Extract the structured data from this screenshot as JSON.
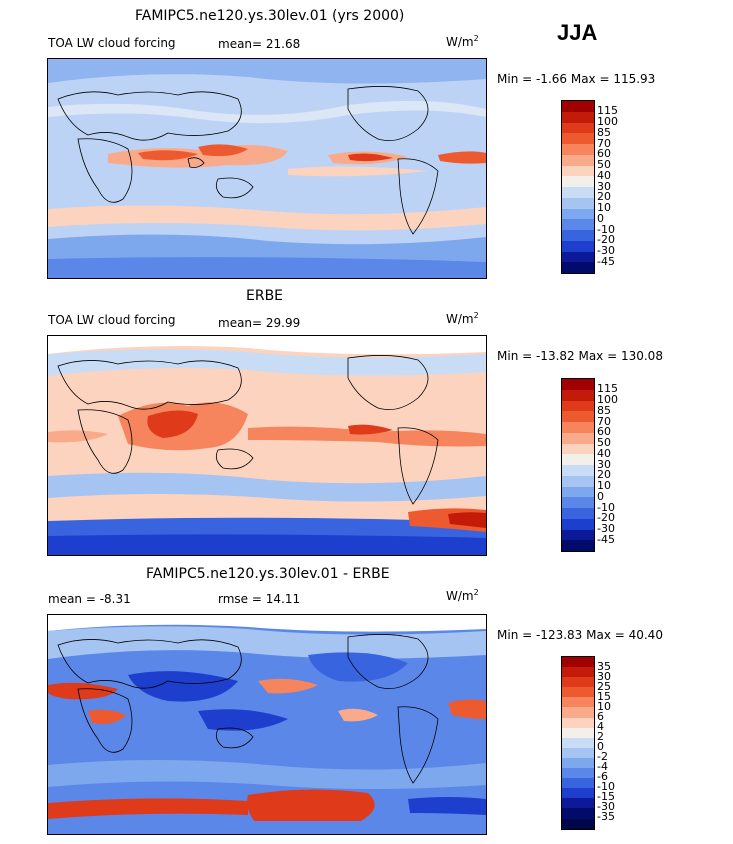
{
  "season": "JJA",
  "unit": "W/m",
  "unit_sup": "2",
  "panels": [
    {
      "id": "model",
      "title": "FAMIPC5.ne120.ys.30lev.01 (yrs 2000)",
      "left_label": "TOA LW cloud forcing",
      "mean_label": "mean=  21.68",
      "minmax": "Min =  -1.66 Max = 115.93",
      "colorbar": {
        "labels": [
          "115",
          "100",
          "85",
          "70",
          "60",
          "50",
          "40",
          "30",
          "20",
          "10",
          "0",
          "-10",
          "-20",
          "-30",
          "-45"
        ],
        "colors": [
          "#a00000",
          "#c41a0a",
          "#df3a1a",
          "#ee5a30",
          "#f6845c",
          "#f9aa8a",
          "#fcd3bf",
          "#f3f0ec",
          "#c8dcf6",
          "#a5c4f2",
          "#7ea8ed",
          "#5b88e8",
          "#3964e0",
          "#1e3fce",
          "#0c1a9a",
          "#020a6a"
        ]
      }
    },
    {
      "id": "obs",
      "title": "ERBE",
      "left_label": "TOA LW cloud forcing",
      "mean_label": "mean=  29.99",
      "minmax": "Min = -13.82 Max = 130.08",
      "colorbar": {
        "labels": [
          "115",
          "100",
          "85",
          "70",
          "60",
          "50",
          "40",
          "30",
          "20",
          "10",
          "0",
          "-10",
          "-20",
          "-30",
          "-45"
        ],
        "colors": [
          "#a00000",
          "#c41a0a",
          "#df3a1a",
          "#ee5a30",
          "#f6845c",
          "#f9aa8a",
          "#fcd3bf",
          "#f3f0ec",
          "#c8dcf6",
          "#a5c4f2",
          "#7ea8ed",
          "#5b88e8",
          "#3964e0",
          "#1e3fce",
          "#0c1a9a",
          "#020a6a"
        ]
      }
    },
    {
      "id": "diff",
      "title": "FAMIPC5.ne120.ys.30lev.01 - ERBE",
      "left_label": "mean =  -8.31",
      "mean_label": "rmse =  14.11",
      "minmax": "Min = -123.83 Max =  40.40",
      "colorbar": {
        "labels": [
          "35",
          "30",
          "25",
          "15",
          "10",
          "6",
          "4",
          "2",
          "0",
          "-2",
          "-4",
          "-6",
          "-10",
          "-15",
          "-30",
          "-35"
        ],
        "colors": [
          "#a00000",
          "#c41a0a",
          "#df3a1a",
          "#ee5a30",
          "#f6845c",
          "#f9aa8a",
          "#fcd3bf",
          "#f3f0ec",
          "#c8dcf6",
          "#a5c4f2",
          "#7ea8ed",
          "#5b88e8",
          "#3964e0",
          "#1e3fce",
          "#0c1a9a",
          "#020a6a",
          "#00064a"
        ]
      }
    }
  ]
}
